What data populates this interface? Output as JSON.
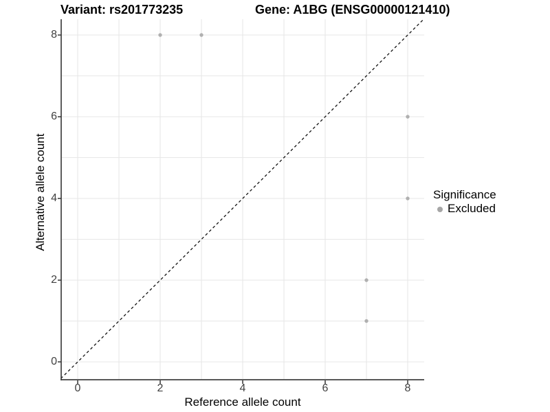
{
  "titles": {
    "left": "Variant: rs201773235",
    "right": "Gene: A1BG (ENSG00000121410)"
  },
  "chart_data": {
    "type": "scatter",
    "xlabel": "Reference allele count",
    "ylabel": "Alternative allele count",
    "xlim": [
      -0.4,
      8.4
    ],
    "ylim": [
      -0.45,
      8.4
    ],
    "xticks": [
      0,
      2,
      4,
      6,
      8
    ],
    "yticks": [
      0,
      2,
      4,
      6,
      8
    ],
    "grid": {
      "x_every": 1,
      "y_every": 1,
      "x_range": [
        0,
        8
      ],
      "y_range": [
        0,
        8
      ]
    },
    "series": [
      {
        "name": "Excluded",
        "points": [
          [
            2,
            8
          ],
          [
            3,
            8
          ],
          [
            8,
            6
          ],
          [
            8,
            4
          ],
          [
            7,
            2
          ],
          [
            7,
            1
          ]
        ]
      }
    ],
    "reference_line": {
      "kind": "identity y=x",
      "style": "dashed",
      "from": [
        -0.5,
        -0.5
      ],
      "to": [
        8.5,
        8.5
      ]
    },
    "legend": {
      "title": "Significance",
      "position": "right",
      "items": [
        {
          "label": "Excluded",
          "marker": "circle",
          "color": "#a6a6a6"
        }
      ]
    }
  },
  "colors": {
    "background": "#ffffff",
    "gridline": "#e7e7e7",
    "axis_line": "#404040",
    "tick_mark": "#333333",
    "tick_label": "#404040",
    "point": "#b0b0b0",
    "reference_line": "#111111",
    "text": "#000000"
  }
}
